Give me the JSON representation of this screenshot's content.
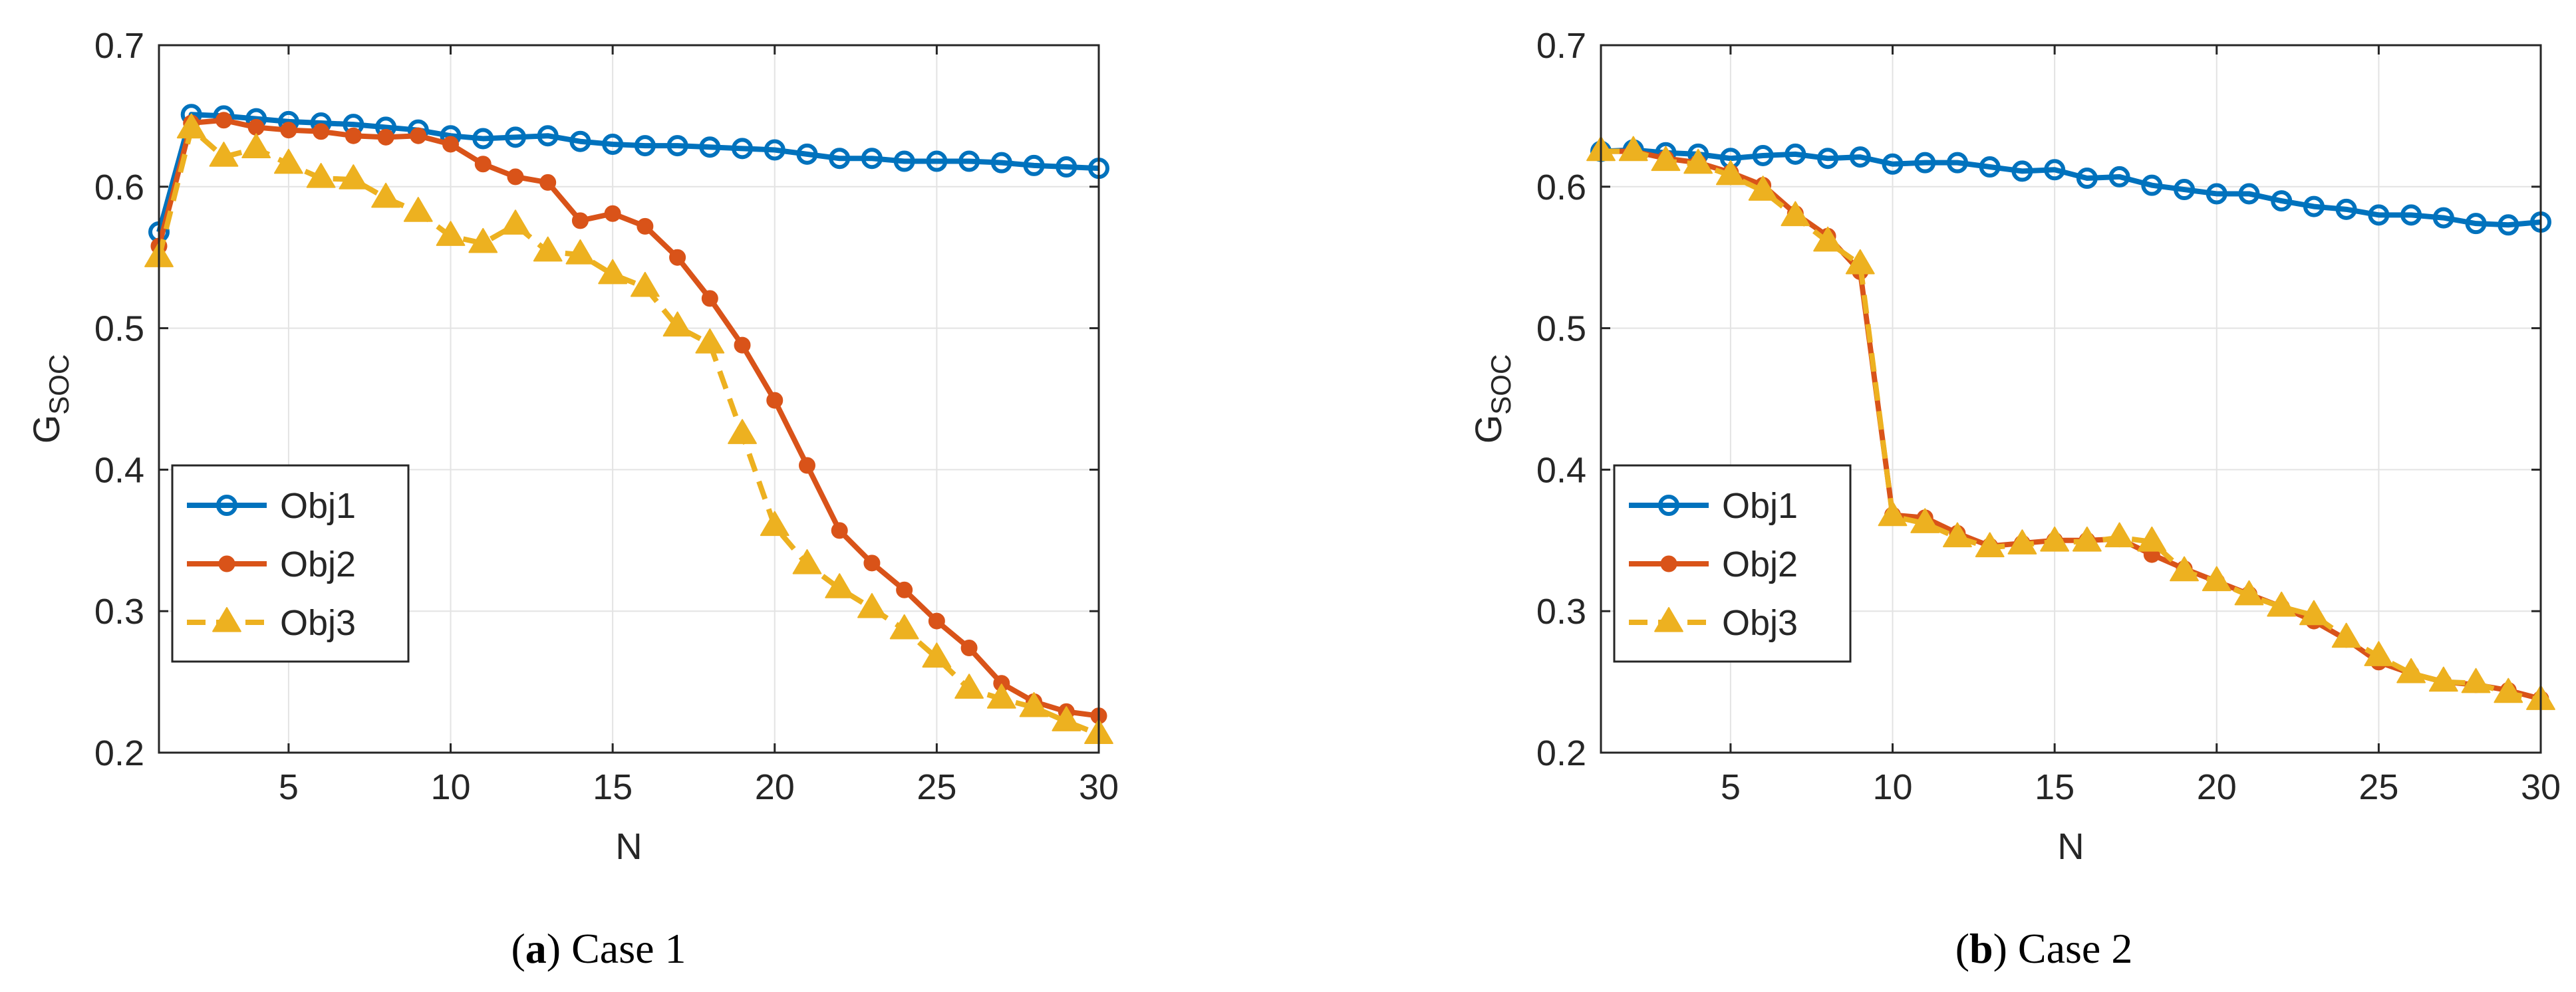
{
  "chart_data": [
    {
      "type": "line",
      "caption_label": "a",
      "caption_text": "Case 1",
      "xlabel": "N",
      "ylabel_main": "G",
      "ylabel_sub": "SOC",
      "xlim": [
        1,
        30
      ],
      "ylim": [
        0.2,
        0.7
      ],
      "xticks": [
        5,
        10,
        15,
        20,
        25,
        30
      ],
      "yticks": [
        0.2,
        0.3,
        0.4,
        0.5,
        0.6,
        0.7
      ],
      "grid": true,
      "legend_position": "bottom-left",
      "x": [
        1,
        2,
        3,
        4,
        5,
        6,
        7,
        8,
        9,
        10,
        11,
        12,
        13,
        14,
        15,
        16,
        17,
        18,
        19,
        20,
        21,
        22,
        23,
        24,
        25,
        26,
        27,
        28,
        29,
        30
      ],
      "series": [
        {
          "name": "Obj1",
          "color": "#0072BD",
          "marker": "circle-open",
          "line": "solid",
          "values": [
            0.568,
            0.651,
            0.65,
            0.648,
            0.646,
            0.645,
            0.644,
            0.642,
            0.64,
            0.636,
            0.634,
            0.635,
            0.636,
            0.632,
            0.63,
            0.629,
            0.629,
            0.628,
            0.627,
            0.626,
            0.623,
            0.62,
            0.62,
            0.618,
            0.618,
            0.618,
            0.617,
            0.615,
            0.614,
            0.613
          ]
        },
        {
          "name": "Obj2",
          "color": "#D95319",
          "marker": "dot",
          "line": "solid",
          "values": [
            0.558,
            0.645,
            0.647,
            0.642,
            0.64,
            0.639,
            0.636,
            0.635,
            0.636,
            0.63,
            0.616,
            0.607,
            0.603,
            0.576,
            0.581,
            0.572,
            0.55,
            0.521,
            0.488,
            0.449,
            0.403,
            0.357,
            0.334,
            0.315,
            0.293,
            0.274,
            0.249,
            0.236,
            0.229,
            0.226
          ]
        },
        {
          "name": "Obj3",
          "color": "#EDB120",
          "marker": "triangle",
          "line": "dashed",
          "values": [
            0.55,
            0.641,
            0.621,
            0.627,
            0.616,
            0.606,
            0.605,
            0.592,
            0.582,
            0.565,
            0.56,
            0.573,
            0.554,
            0.552,
            0.538,
            0.529,
            0.501,
            0.489,
            0.425,
            0.36,
            0.333,
            0.316,
            0.302,
            0.287,
            0.267,
            0.245,
            0.238,
            0.232,
            0.222,
            0.213
          ]
        }
      ]
    },
    {
      "type": "line",
      "caption_label": "b",
      "caption_text": "Case 2",
      "xlabel": "N",
      "ylabel_main": "G",
      "ylabel_sub": "SOC",
      "xlim": [
        1,
        30
      ],
      "ylim": [
        0.2,
        0.7
      ],
      "xticks": [
        5,
        10,
        15,
        20,
        25,
        30
      ],
      "yticks": [
        0.2,
        0.3,
        0.4,
        0.5,
        0.6,
        0.7
      ],
      "grid": true,
      "legend_position": "bottom-left",
      "x": [
        1,
        2,
        3,
        4,
        5,
        6,
        7,
        8,
        9,
        10,
        11,
        12,
        13,
        14,
        15,
        16,
        17,
        18,
        19,
        20,
        21,
        22,
        23,
        24,
        25,
        26,
        27,
        28,
        29,
        30
      ],
      "series": [
        {
          "name": "Obj1",
          "color": "#0072BD",
          "marker": "circle-open",
          "line": "solid",
          "values": [
            0.625,
            0.626,
            0.624,
            0.623,
            0.62,
            0.622,
            0.623,
            0.62,
            0.621,
            0.616,
            0.617,
            0.617,
            0.614,
            0.611,
            0.612,
            0.606,
            0.607,
            0.601,
            0.598,
            0.595,
            0.595,
            0.59,
            0.586,
            0.584,
            0.58,
            0.58,
            0.578,
            0.574,
            0.573,
            0.575
          ]
        },
        {
          "name": "Obj2",
          "color": "#D95319",
          "marker": "dot",
          "line": "solid",
          "values": [
            0.625,
            0.625,
            0.62,
            0.617,
            0.61,
            0.601,
            0.581,
            0.565,
            0.54,
            0.368,
            0.366,
            0.355,
            0.346,
            0.348,
            0.35,
            0.35,
            0.351,
            0.34,
            0.33,
            0.321,
            0.312,
            0.303,
            0.293,
            0.28,
            0.264,
            0.256,
            0.25,
            0.248,
            0.244,
            0.238
          ]
        },
        {
          "name": "Obj3",
          "color": "#EDB120",
          "marker": "triangle",
          "line": "dashed",
          "values": [
            0.625,
            0.625,
            0.618,
            0.616,
            0.608,
            0.597,
            0.579,
            0.561,
            0.545,
            0.367,
            0.362,
            0.352,
            0.345,
            0.347,
            0.349,
            0.349,
            0.352,
            0.349,
            0.328,
            0.321,
            0.311,
            0.303,
            0.297,
            0.281,
            0.268,
            0.256,
            0.25,
            0.249,
            0.242,
            0.237
          ]
        }
      ]
    }
  ]
}
